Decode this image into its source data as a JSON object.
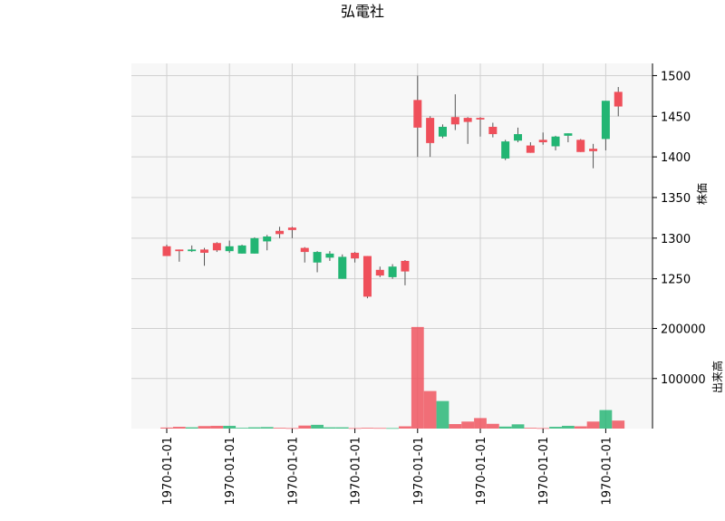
{
  "chart_data": {
    "type": "candlestick",
    "title": "弘電社",
    "price_axis": {
      "label": "株価",
      "ticks": [
        1250,
        1300,
        1350,
        1400,
        1450,
        1500
      ],
      "ylim": [
        1195,
        1515
      ]
    },
    "volume_axis": {
      "label": "出来高",
      "ticks": [
        100000,
        200000
      ],
      "ylim": [
        0,
        210000
      ]
    },
    "x_tick_labels": [
      "1970-01-01",
      "1970-01-01",
      "1970-01-01",
      "1970-01-01",
      "1970-01-01",
      "1970-01-01",
      "1970-01-01",
      "1970-01-01"
    ],
    "x_tick_indices": [
      1,
      6,
      11,
      16,
      21,
      26,
      31,
      36
    ],
    "up_color": "#ef4f5a",
    "down_color": "#22b573",
    "grid": true,
    "candles": [
      {
        "o": 1278,
        "h": 1292,
        "l": 1278,
        "c": 1290
      },
      {
        "o": 1284,
        "h": 1286,
        "l": 1271,
        "c": 1286
      },
      {
        "o": 1286,
        "h": 1291,
        "l": 1283,
        "c": 1284
      },
      {
        "o": 1282,
        "h": 1288,
        "l": 1266,
        "c": 1286
      },
      {
        "o": 1285,
        "h": 1295,
        "l": 1283,
        "c": 1294
      },
      {
        "o": 1290,
        "h": 1297,
        "l": 1282,
        "c": 1284
      },
      {
        "o": 1291,
        "h": 1292,
        "l": 1281,
        "c": 1281
      },
      {
        "o": 1300,
        "h": 1301,
        "l": 1281,
        "c": 1281
      },
      {
        "o": 1302,
        "h": 1304,
        "l": 1285,
        "c": 1296
      },
      {
        "o": 1305,
        "h": 1314,
        "l": 1300,
        "c": 1309
      },
      {
        "o": 1310,
        "h": 1314,
        "l": 1300,
        "c": 1313
      },
      {
        "o": 1283,
        "h": 1289,
        "l": 1270,
        "c": 1288
      },
      {
        "o": 1283,
        "h": 1284,
        "l": 1258,
        "c": 1270
      },
      {
        "o": 1281,
        "h": 1284,
        "l": 1272,
        "c": 1276
      },
      {
        "o": 1277,
        "h": 1280,
        "l": 1250,
        "c": 1250
      },
      {
        "o": 1275,
        "h": 1283,
        "l": 1270,
        "c": 1282
      },
      {
        "o": 1228,
        "h": 1278,
        "l": 1226,
        "c": 1278
      },
      {
        "o": 1254,
        "h": 1265,
        "l": 1252,
        "c": 1261
      },
      {
        "o": 1265,
        "h": 1268,
        "l": 1250,
        "c": 1252
      },
      {
        "o": 1259,
        "h": 1273,
        "l": 1242,
        "c": 1272
      },
      {
        "o": 1436,
        "h": 1500,
        "l": 1400,
        "c": 1470
      },
      {
        "o": 1417,
        "h": 1450,
        "l": 1400,
        "c": 1448
      },
      {
        "o": 1437,
        "h": 1440,
        "l": 1423,
        "c": 1425
      },
      {
        "o": 1440,
        "h": 1477,
        "l": 1433,
        "c": 1449
      },
      {
        "o": 1443,
        "h": 1449,
        "l": 1416,
        "c": 1448
      },
      {
        "o": 1446,
        "h": 1449,
        "l": 1425,
        "c": 1448
      },
      {
        "o": 1428,
        "h": 1442,
        "l": 1424,
        "c": 1437
      },
      {
        "o": 1419,
        "h": 1421,
        "l": 1396,
        "c": 1398
      },
      {
        "o": 1428,
        "h": 1436,
        "l": 1418,
        "c": 1420
      },
      {
        "o": 1405,
        "h": 1418,
        "l": 1405,
        "c": 1414
      },
      {
        "o": 1418,
        "h": 1430,
        "l": 1415,
        "c": 1421
      },
      {
        "o": 1425,
        "h": 1426,
        "l": 1408,
        "c": 1413
      },
      {
        "o": 1429,
        "h": 1429,
        "l": 1418,
        "c": 1426
      },
      {
        "o": 1406,
        "h": 1422,
        "l": 1406,
        "c": 1421
      },
      {
        "o": 1407,
        "h": 1416,
        "l": 1386,
        "c": 1410
      },
      {
        "o": 1469,
        "h": 1469,
        "l": 1408,
        "c": 1422
      },
      {
        "o": 1462,
        "h": 1486,
        "l": 1450,
        "c": 1480
      }
    ],
    "volumes": [
      2000,
      3500,
      2500,
      5000,
      5500,
      5500,
      1500,
      2500,
      3000,
      1500,
      1000,
      6000,
      7500,
      2500,
      2500,
      1000,
      1500,
      1200,
      1000,
      4500,
      203000,
      75000,
      55000,
      9000,
      14000,
      21000,
      9500,
      4000,
      8500,
      1500,
      1000,
      3500,
      5500,
      4500,
      14000,
      37000,
      16000
    ]
  }
}
